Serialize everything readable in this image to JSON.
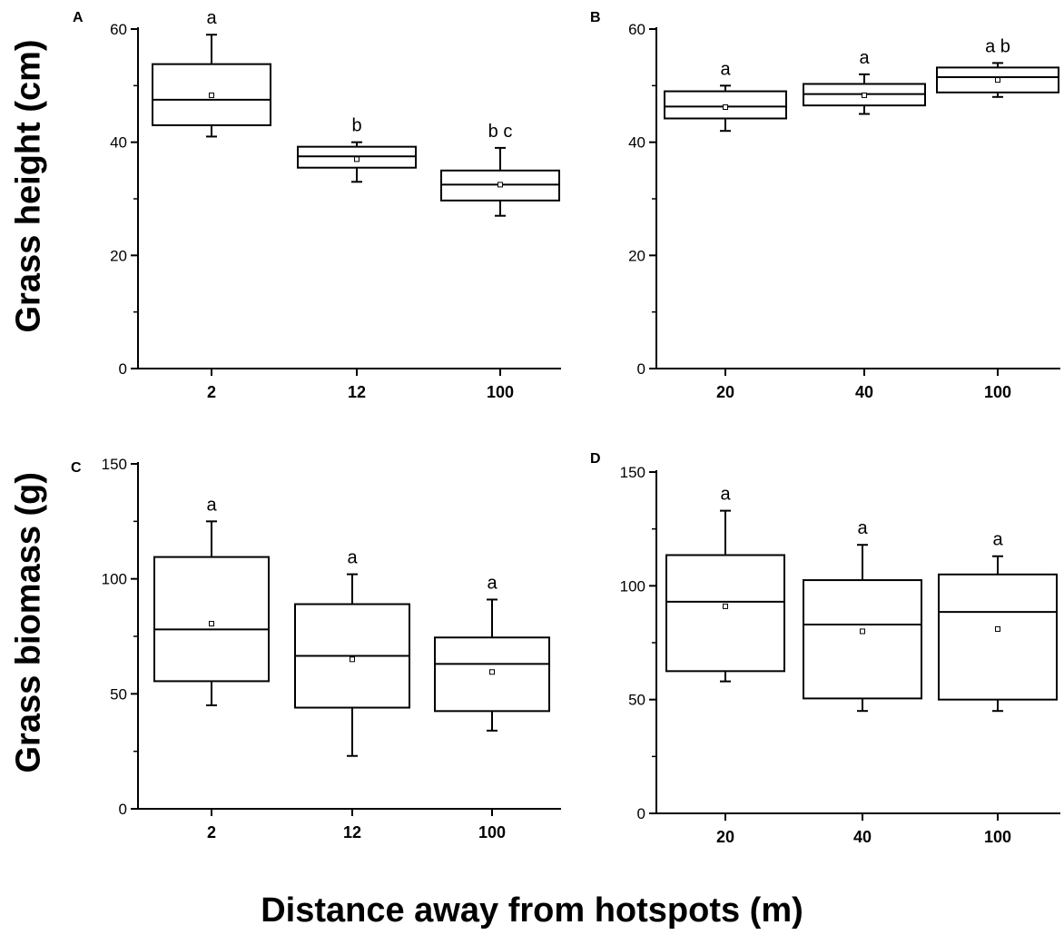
{
  "figure": {
    "ylabel_top": "Grass height (cm)",
    "ylabel_bottom": "Grass biomass (g)",
    "xlabel": "Distance away from hotspots (m)"
  },
  "chart_data": [
    {
      "type": "box",
      "panel": "A",
      "categories": [
        "2",
        "12",
        "100"
      ],
      "ylim": [
        0,
        60
      ],
      "yticks": [
        "0",
        "20",
        "40",
        "60"
      ],
      "boxes": [
        {
          "category": "2",
          "whisker_low": 41,
          "q1": 43,
          "median": 47.5,
          "q3": 53.8,
          "whisker_high": 59,
          "mean": 48.3,
          "letter": "a"
        },
        {
          "category": "12",
          "whisker_low": 33,
          "q1": 35.5,
          "median": 37.5,
          "q3": 39.2,
          "whisker_high": 40,
          "mean": 37,
          "letter": "b"
        },
        {
          "category": "100",
          "whisker_low": 27,
          "q1": 29.7,
          "median": 32.5,
          "q3": 35,
          "whisker_high": 39,
          "mean": 32.5,
          "letter": "b c"
        }
      ]
    },
    {
      "type": "box",
      "panel": "B",
      "categories": [
        "20",
        "40",
        "100"
      ],
      "ylim": [
        0,
        60
      ],
      "yticks": [
        "0",
        "20",
        "40",
        "60"
      ],
      "boxes": [
        {
          "category": "20",
          "whisker_low": 42,
          "q1": 44.2,
          "median": 46.3,
          "q3": 49,
          "whisker_high": 50,
          "mean": 46.2,
          "letter": "a"
        },
        {
          "category": "40",
          "whisker_low": 45,
          "q1": 46.5,
          "median": 48.5,
          "q3": 50.3,
          "whisker_high": 52,
          "mean": 48.3,
          "letter": "a"
        },
        {
          "category": "100",
          "whisker_low": 48,
          "q1": 48.8,
          "median": 51.5,
          "q3": 53.2,
          "whisker_high": 54,
          "mean": 51,
          "letter": "a b"
        }
      ]
    },
    {
      "type": "box",
      "panel": "C",
      "categories": [
        "2",
        "12",
        "100"
      ],
      "ylim": [
        0,
        150
      ],
      "yticks": [
        "0",
        "50",
        "100",
        "150"
      ],
      "boxes": [
        {
          "category": "2",
          "whisker_low": 45,
          "q1": 55.5,
          "median": 78,
          "q3": 109.5,
          "whisker_high": 125,
          "mean": 80.5,
          "letter": "a"
        },
        {
          "category": "12",
          "whisker_low": 23,
          "q1": 44,
          "median": 66.5,
          "q3": 89,
          "whisker_high": 102,
          "mean": 65,
          "letter": "a"
        },
        {
          "category": "100",
          "whisker_low": 34,
          "q1": 42.5,
          "median": 63,
          "q3": 74.5,
          "whisker_high": 91,
          "mean": 59.5,
          "letter": "a"
        }
      ]
    },
    {
      "type": "box",
      "panel": "D",
      "categories": [
        "20",
        "40",
        "100"
      ],
      "ylim": [
        0,
        150
      ],
      "yticks": [
        "0",
        "50",
        "100",
        "150"
      ],
      "boxes": [
        {
          "category": "20",
          "whisker_low": 58,
          "q1": 62.5,
          "median": 93,
          "q3": 113.5,
          "whisker_high": 133,
          "mean": 91,
          "letter": "a"
        },
        {
          "category": "40",
          "whisker_low": 45,
          "q1": 50.5,
          "median": 83,
          "q3": 102.5,
          "whisker_high": 118,
          "mean": 80,
          "letter": "a"
        },
        {
          "category": "100",
          "whisker_low": 45,
          "q1": 50,
          "median": 88.5,
          "q3": 105,
          "whisker_high": 113,
          "mean": 81,
          "letter": "a"
        }
      ]
    }
  ]
}
